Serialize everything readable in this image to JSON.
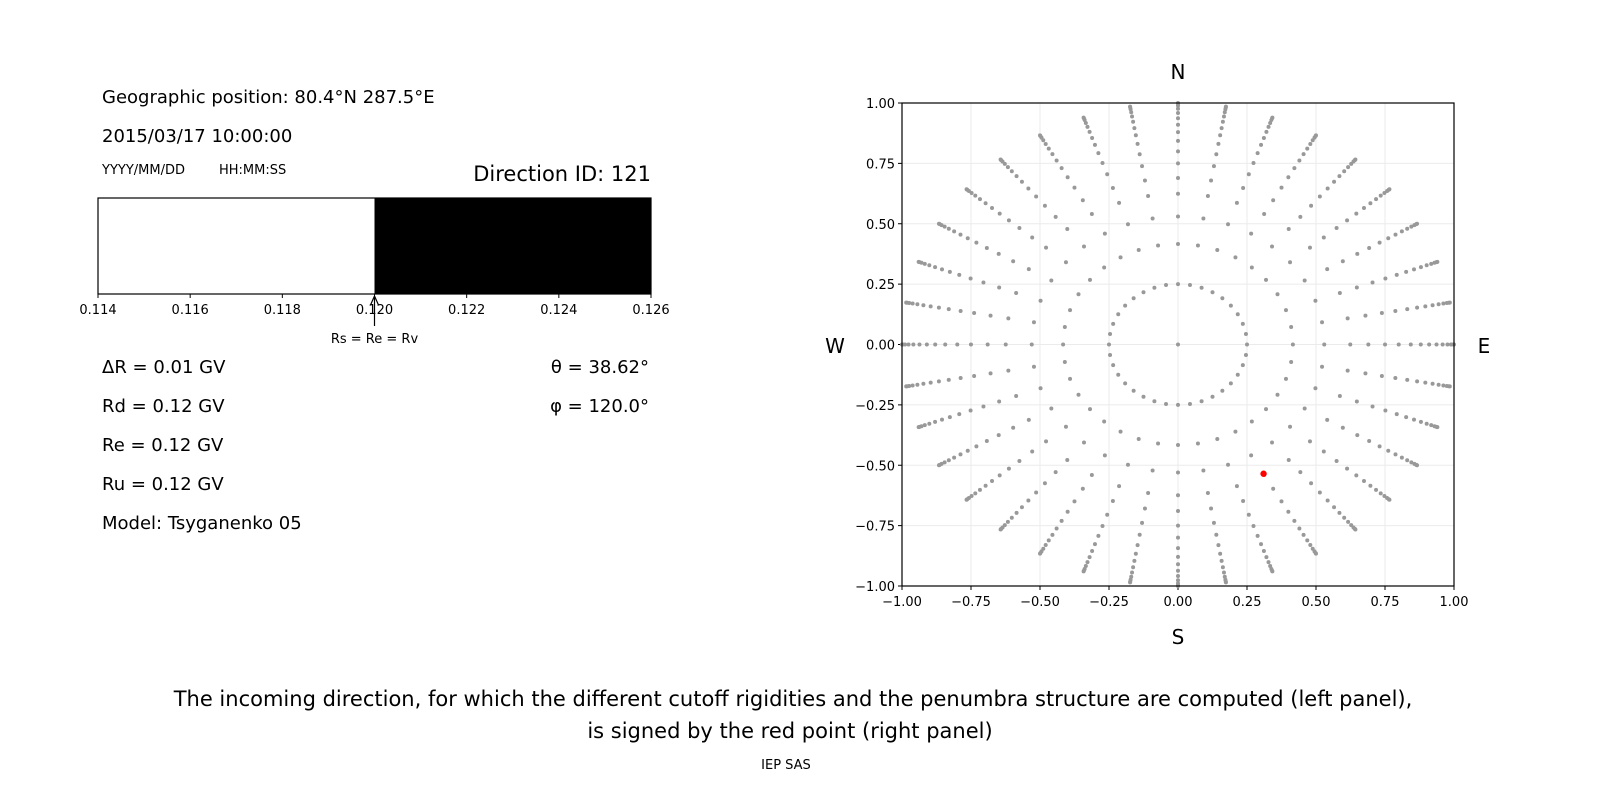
{
  "left_panel": {
    "geo_position": "Geographic position: 80.4°N 287.5°E",
    "datetime": "2015/03/17 10:00:00",
    "date_format": "YYYY/MM/DD",
    "time_format": "HH:MM:SS",
    "direction_id": "Direction ID: 121",
    "stats": [
      "ΔR = 0.01 GV",
      "Rd = 0.12 GV",
      "Re = 0.12 GV",
      "Ru = 0.12 GV",
      "Model: Tsyganenko 05"
    ],
    "theta": "θ = 38.62°",
    "phi": "φ = 120.0°"
  },
  "chart_data": [
    {
      "type": "bar",
      "description_kind": "penumbra",
      "xlim": [
        0.114,
        0.126
      ],
      "xticks": [
        "0.114",
        "0.116",
        "0.118",
        "0.120",
        "0.122",
        "0.124",
        "0.126"
      ],
      "segments": [
        {
          "from": 0.114,
          "to": 0.12,
          "color": "#ffffff"
        },
        {
          "from": 0.12,
          "to": 0.126,
          "color": "#000000"
        }
      ],
      "annotation": {
        "text": "Rs = Re = Rv",
        "x": 0.12
      }
    },
    {
      "type": "scatter",
      "xlim": [
        -1,
        1
      ],
      "ylim": [
        -1,
        1
      ],
      "grid": true,
      "xticks": [
        "−1.00",
        "−0.75",
        "−0.50",
        "−0.25",
        "0.00",
        "0.25",
        "0.50",
        "0.75",
        "1.00"
      ],
      "yticks": [
        "−1.00",
        "−0.75",
        "−0.50",
        "−0.25",
        "0.00",
        "0.25",
        "0.50",
        "0.75",
        "1.00"
      ],
      "compass": {
        "top": "N",
        "bottom": "S",
        "left": "W",
        "right": "E"
      },
      "directions": {
        "azimuth_step_deg": 10,
        "inner_ring_zenith_deg": 14.48,
        "spoke_zenith_deg": [
          24.6,
          32.0,
          38.62,
          43.6,
          48.6,
          53.1,
          57.5,
          61.6,
          65.5,
          69.5,
          73.5,
          77.5,
          81.5,
          85.5,
          90.0
        ],
        "projection": "r = sin(zenith)",
        "color": "#999999"
      },
      "selected_point": {
        "x": 0.31,
        "y": -0.535,
        "color": "#ff0000"
      }
    }
  ],
  "caption": {
    "line1": "The incoming direction, for which the different cutoff rigidities and the penumbra structure are computed (left panel),",
    "line2": "is signed by the red point (right panel)"
  },
  "footer": "IEP SAS"
}
